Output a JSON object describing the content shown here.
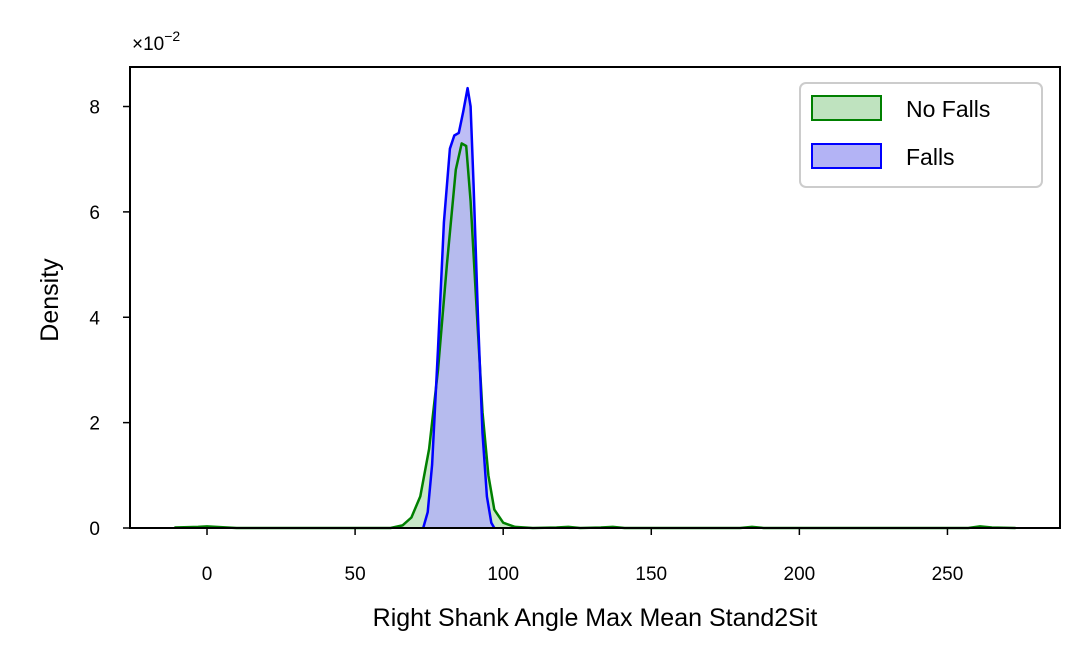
{
  "chart_data": {
    "type": "area",
    "title": "",
    "xlabel": "Right Shank Angle Max Mean Stand2Sit",
    "ylabel": "Density",
    "y_offset_label": "×10",
    "y_offset_exponent": "−2",
    "xlim": [
      -26,
      288
    ],
    "ylim": [
      0,
      8.75
    ],
    "x_ticks": [
      0,
      50,
      100,
      150,
      200,
      250
    ],
    "y_ticks": [
      0,
      2,
      4,
      6,
      8
    ],
    "grid": false,
    "legend_position": "top-right",
    "series": [
      {
        "name": "No Falls",
        "color": "#008000",
        "fill": "#bfe3bf",
        "points": [
          [
            -11,
            0.01
          ],
          [
            -3,
            0.02
          ],
          [
            0,
            0.03
          ],
          [
            3,
            0.02
          ],
          [
            10,
            0.0
          ],
          [
            50,
            0.0
          ],
          [
            62,
            0.0
          ],
          [
            66,
            0.05
          ],
          [
            69,
            0.2
          ],
          [
            72,
            0.6
          ],
          [
            75,
            1.5
          ],
          [
            78,
            3.0
          ],
          [
            81,
            5.0
          ],
          [
            84,
            6.8
          ],
          [
            86,
            7.3
          ],
          [
            87.5,
            7.25
          ],
          [
            89,
            6.2
          ],
          [
            91,
            4.2
          ],
          [
            93,
            2.2
          ],
          [
            95,
            1.0
          ],
          [
            97,
            0.35
          ],
          [
            100,
            0.1
          ],
          [
            104,
            0.02
          ],
          [
            110,
            0.0
          ],
          [
            118,
            0.01
          ],
          [
            122,
            0.02
          ],
          [
            126,
            0.0
          ],
          [
            133,
            0.01
          ],
          [
            137,
            0.02
          ],
          [
            141,
            0.0
          ],
          [
            180,
            0.0
          ],
          [
            184,
            0.02
          ],
          [
            188,
            0.0
          ],
          [
            257,
            0.0
          ],
          [
            261,
            0.03
          ],
          [
            265,
            0.01
          ],
          [
            273,
            0.0
          ]
        ]
      },
      {
        "name": "Falls",
        "color": "#0000ff",
        "fill": "#b3b3f5",
        "points": [
          [
            73,
            0.0
          ],
          [
            74.5,
            0.3
          ],
          [
            76,
            1.2
          ],
          [
            78,
            3.4
          ],
          [
            80,
            5.8
          ],
          [
            82,
            7.2
          ],
          [
            83.5,
            7.45
          ],
          [
            85,
            7.5
          ],
          [
            86.5,
            7.9
          ],
          [
            88,
            8.35
          ],
          [
            89,
            8.0
          ],
          [
            90,
            6.5
          ],
          [
            91.5,
            4.0
          ],
          [
            93,
            1.8
          ],
          [
            94.5,
            0.6
          ],
          [
            96,
            0.1
          ],
          [
            97,
            0.0
          ]
        ]
      }
    ]
  }
}
